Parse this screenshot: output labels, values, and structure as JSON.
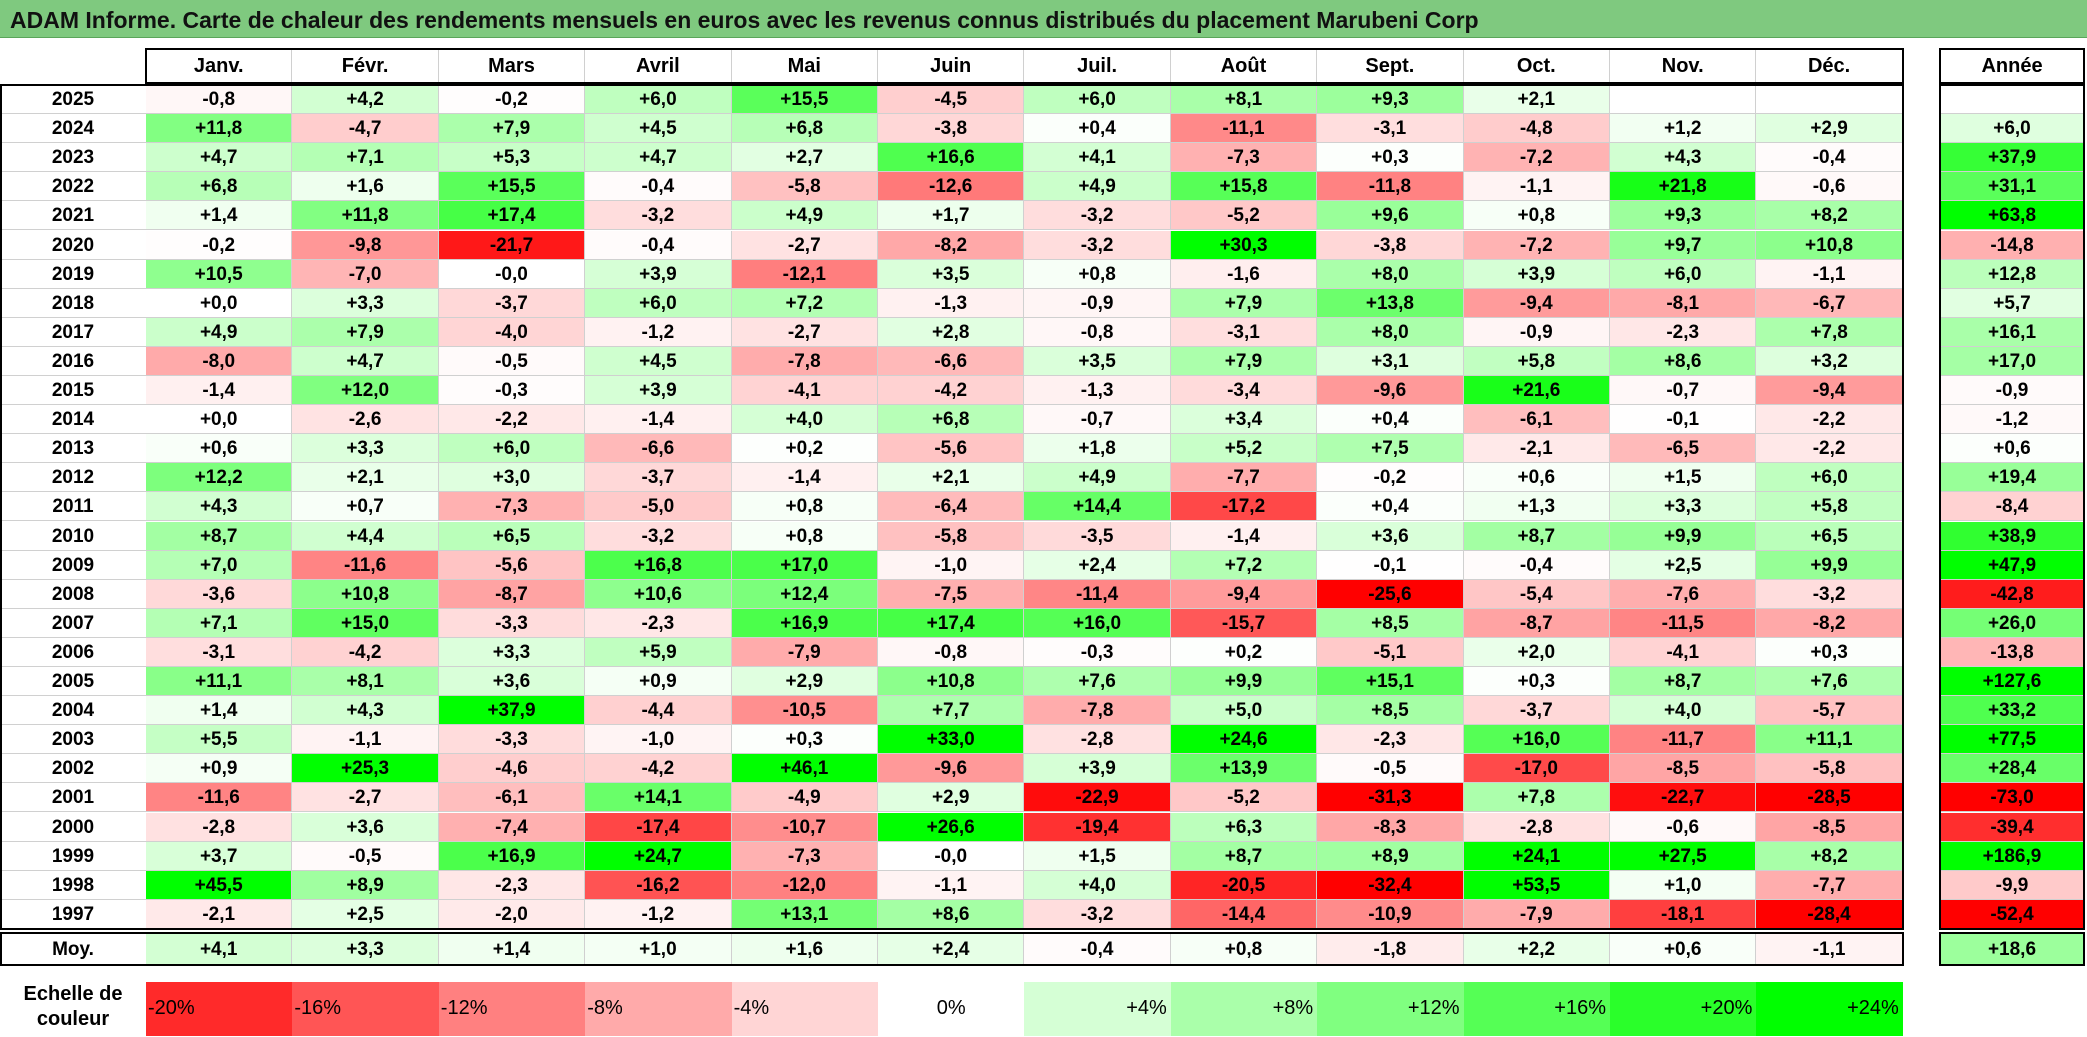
{
  "title": "ADAM Informe. Carte de chaleur des rendements mensuels en euros avec les revenus connus distribués du placement Marubeni Corp",
  "chart_data": {
    "type": "heatmap",
    "title": "ADAM Informe. Carte de chaleur des rendements mensuels en euros avec les revenus connus distribués du placement Marubeni Corp",
    "columns": [
      "Janv.",
      "Févr.",
      "Mars",
      "Avril",
      "Mai",
      "Juin",
      "Juil.",
      "Août",
      "Sept.",
      "Oct.",
      "Nov.",
      "Déc."
    ],
    "annual_header": "Année",
    "rows": [
      {
        "year": "2025",
        "values": [
          "-0,8",
          "+4,2",
          "-0,2",
          "+6,0",
          "+15,5",
          "-4,5",
          "+6,0",
          "+8,1",
          "+9,3",
          "+2,1",
          "",
          ""
        ],
        "annual": ""
      },
      {
        "year": "2024",
        "values": [
          "+11,8",
          "-4,7",
          "+7,9",
          "+4,5",
          "+6,8",
          "-3,8",
          "+0,4",
          "-11,1",
          "-3,1",
          "-4,8",
          "+1,2",
          "+2,9"
        ],
        "annual": "+6,0"
      },
      {
        "year": "2023",
        "values": [
          "+4,7",
          "+7,1",
          "+5,3",
          "+4,7",
          "+2,7",
          "+16,6",
          "+4,1",
          "-7,3",
          "+0,3",
          "-7,2",
          "+4,3",
          "-0,4"
        ],
        "annual": "+37,9"
      },
      {
        "year": "2022",
        "values": [
          "+6,8",
          "+1,6",
          "+15,5",
          "-0,4",
          "-5,8",
          "-12,6",
          "+4,9",
          "+15,8",
          "-11,8",
          "-1,1",
          "+21,8",
          "-0,6"
        ],
        "annual": "+31,1"
      },
      {
        "year": "2021",
        "values": [
          "+1,4",
          "+11,8",
          "+17,4",
          "-3,2",
          "+4,9",
          "+1,7",
          "-3,2",
          "-5,2",
          "+9,6",
          "+0,8",
          "+9,3",
          "+8,2"
        ],
        "annual": "+63,8"
      },
      {
        "year": "2020",
        "values": [
          "-0,2",
          "-9,8",
          "-21,7",
          "-0,4",
          "-2,7",
          "-8,2",
          "-3,2",
          "+30,3",
          "-3,8",
          "-7,2",
          "+9,7",
          "+10,8"
        ],
        "annual": "-14,8"
      },
      {
        "year": "2019",
        "values": [
          "+10,5",
          "-7,0",
          "-0,0",
          "+3,9",
          "-12,1",
          "+3,5",
          "+0,8",
          "-1,6",
          "+8,0",
          "+3,9",
          "+6,0",
          "-1,1"
        ],
        "annual": "+12,8"
      },
      {
        "year": "2018",
        "values": [
          "+0,0",
          "+3,3",
          "-3,7",
          "+6,0",
          "+7,2",
          "-1,3",
          "-0,9",
          "+7,9",
          "+13,8",
          "-9,4",
          "-8,1",
          "-6,7"
        ],
        "annual": "+5,7"
      },
      {
        "year": "2017",
        "values": [
          "+4,9",
          "+7,9",
          "-4,0",
          "-1,2",
          "-2,7",
          "+2,8",
          "-0,8",
          "-3,1",
          "+8,0",
          "-0,9",
          "-2,3",
          "+7,8"
        ],
        "annual": "+16,1"
      },
      {
        "year": "2016",
        "values": [
          "-8,0",
          "+4,7",
          "-0,5",
          "+4,5",
          "-7,8",
          "-6,6",
          "+3,5",
          "+7,9",
          "+3,1",
          "+5,8",
          "+8,6",
          "+3,2"
        ],
        "annual": "+17,0"
      },
      {
        "year": "2015",
        "values": [
          "-1,4",
          "+12,0",
          "-0,3",
          "+3,9",
          "-4,1",
          "-4,2",
          "-1,3",
          "-3,4",
          "-9,6",
          "+21,6",
          "-0,7",
          "-9,4"
        ],
        "annual": "-0,9"
      },
      {
        "year": "2014",
        "values": [
          "+0,0",
          "-2,6",
          "-2,2",
          "-1,4",
          "+4,0",
          "+6,8",
          "-0,7",
          "+3,4",
          "+0,4",
          "-6,1",
          "-0,1",
          "-2,2"
        ],
        "annual": "-1,2"
      },
      {
        "year": "2013",
        "values": [
          "+0,6",
          "+3,3",
          "+6,0",
          "-6,6",
          "+0,2",
          "-5,6",
          "+1,8",
          "+5,2",
          "+7,5",
          "-2,1",
          "-6,5",
          "-2,2"
        ],
        "annual": "+0,6"
      },
      {
        "year": "2012",
        "values": [
          "+12,2",
          "+2,1",
          "+3,0",
          "-3,7",
          "-1,4",
          "+2,1",
          "+4,9",
          "-7,7",
          "-0,2",
          "+0,6",
          "+1,5",
          "+6,0"
        ],
        "annual": "+19,4"
      },
      {
        "year": "2011",
        "values": [
          "+4,3",
          "+0,7",
          "-7,3",
          "-5,0",
          "+0,8",
          "-6,4",
          "+14,4",
          "-17,2",
          "+0,4",
          "+1,3",
          "+3,3",
          "+5,8"
        ],
        "annual": "-8,4"
      },
      {
        "year": "2010",
        "values": [
          "+8,7",
          "+4,4",
          "+6,5",
          "-3,2",
          "+0,8",
          "-5,8",
          "-3,5",
          "-1,4",
          "+3,6",
          "+8,7",
          "+9,9",
          "+6,5"
        ],
        "annual": "+38,9"
      },
      {
        "year": "2009",
        "values": [
          "+7,0",
          "-11,6",
          "-5,6",
          "+16,8",
          "+17,0",
          "-1,0",
          "+2,4",
          "+7,2",
          "-0,1",
          "-0,4",
          "+2,5",
          "+9,9"
        ],
        "annual": "+47,9"
      },
      {
        "year": "2008",
        "values": [
          "-3,6",
          "+10,8",
          "-8,7",
          "+10,6",
          "+12,4",
          "-7,5",
          "-11,4",
          "-9,4",
          "-25,6",
          "-5,4",
          "-7,6",
          "-3,2"
        ],
        "annual": "-42,8"
      },
      {
        "year": "2007",
        "values": [
          "+7,1",
          "+15,0",
          "-3,3",
          "-2,3",
          "+16,9",
          "+17,4",
          "+16,0",
          "-15,7",
          "+8,5",
          "-8,7",
          "-11,5",
          "-8,2"
        ],
        "annual": "+26,0"
      },
      {
        "year": "2006",
        "values": [
          "-3,1",
          "-4,2",
          "+3,3",
          "+5,9",
          "-7,9",
          "-0,8",
          "-0,3",
          "+0,2",
          "-5,1",
          "+2,0",
          "-4,1",
          "+0,3"
        ],
        "annual": "-13,8"
      },
      {
        "year": "2005",
        "values": [
          "+11,1",
          "+8,1",
          "+3,6",
          "+0,9",
          "+2,9",
          "+10,8",
          "+7,6",
          "+9,9",
          "+15,1",
          "+0,3",
          "+8,7",
          "+7,6"
        ],
        "annual": "+127,6"
      },
      {
        "year": "2004",
        "values": [
          "+1,4",
          "+4,3",
          "+37,9",
          "-4,4",
          "-10,5",
          "+7,7",
          "-7,8",
          "+5,0",
          "+8,5",
          "-3,7",
          "+4,0",
          "-5,7"
        ],
        "annual": "+33,2"
      },
      {
        "year": "2003",
        "values": [
          "+5,5",
          "-1,1",
          "-3,3",
          "-1,0",
          "+0,3",
          "+33,0",
          "-2,8",
          "+24,6",
          "-2,3",
          "+16,0",
          "-11,7",
          "+11,1"
        ],
        "annual": "+77,5"
      },
      {
        "year": "2002",
        "values": [
          "+0,9",
          "+25,3",
          "-4,6",
          "-4,2",
          "+46,1",
          "-9,6",
          "+3,9",
          "+13,9",
          "-0,5",
          "-17,0",
          "-8,5",
          "-5,8"
        ],
        "annual": "+28,4"
      },
      {
        "year": "2001",
        "values": [
          "-11,6",
          "-2,7",
          "-6,1",
          "+14,1",
          "-4,9",
          "+2,9",
          "-22,9",
          "-5,2",
          "-31,3",
          "+7,8",
          "-22,7",
          "-28,5"
        ],
        "annual": "-73,0"
      },
      {
        "year": "2000",
        "values": [
          "-2,8",
          "+3,6",
          "-7,4",
          "-17,4",
          "-10,7",
          "+26,6",
          "-19,4",
          "+6,3",
          "-8,3",
          "-2,8",
          "-0,6",
          "-8,5"
        ],
        "annual": "-39,4"
      },
      {
        "year": "1999",
        "values": [
          "+3,7",
          "-0,5",
          "+16,9",
          "+24,7",
          "-7,3",
          "-0,0",
          "+1,5",
          "+8,7",
          "+8,9",
          "+24,1",
          "+27,5",
          "+8,2"
        ],
        "annual": "+186,9"
      },
      {
        "year": "1998",
        "values": [
          "+45,5",
          "+8,9",
          "-2,3",
          "-16,2",
          "-12,0",
          "-1,1",
          "+4,0",
          "-20,5",
          "-32,4",
          "+53,5",
          "+1,0",
          "-7,7"
        ],
        "annual": "-9,9"
      },
      {
        "year": "1997",
        "values": [
          "-2,1",
          "+2,5",
          "-2,0",
          "-1,2",
          "+13,1",
          "+8,6",
          "-3,2",
          "-14,4",
          "-10,9",
          "-7,9",
          "-18,1",
          "-28,4"
        ],
        "annual": "-52,4"
      }
    ],
    "average": {
      "label": "Moy.",
      "values": [
        "+4,1",
        "+3,3",
        "+1,4",
        "+1,0",
        "+1,6",
        "+2,4",
        "-0,4",
        "+0,8",
        "-1,8",
        "+2,2",
        "+0,6",
        "-1,1"
      ],
      "annual": "+18,6"
    },
    "scale": {
      "label_line1": "Echelle de",
      "label_line2": "couleur",
      "steps": [
        "-20%",
        "-16%",
        "-12%",
        "-8%",
        "-4%",
        "0%",
        "+4%",
        "+8%",
        "+12%",
        "+16%",
        "+20%",
        "+24%"
      ]
    },
    "colors": {
      "title_background": "#7fc97f",
      "negative_max": "#ff0000",
      "neutral": "#ffffff",
      "positive_max": "#00ff00"
    }
  }
}
